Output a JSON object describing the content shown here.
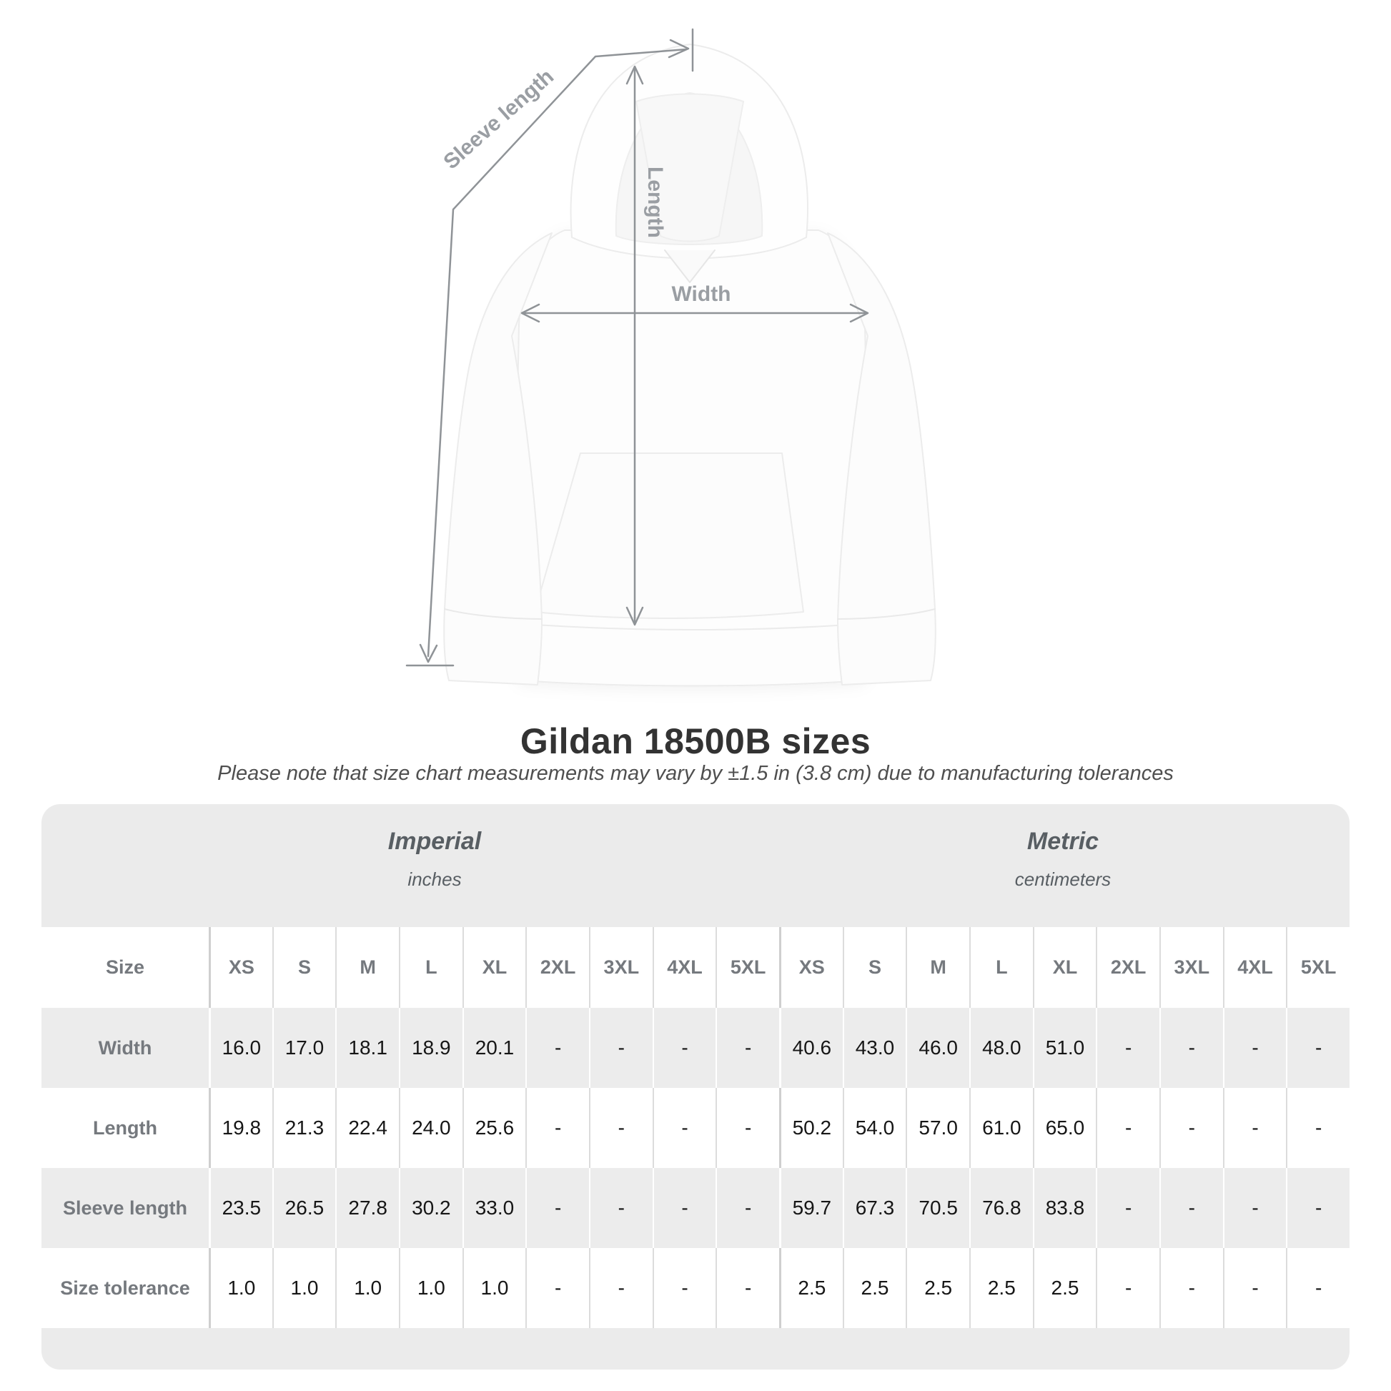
{
  "diagram": {
    "sleeve_length_label": "Sleeve length",
    "length_label": "Length",
    "width_label": "Width"
  },
  "title": "Gildan 18500B sizes",
  "subtitle": "Please note that size chart measurements may vary by ±1.5 in (3.8 cm) due to manufacturing tolerances",
  "table": {
    "size_header": "Size",
    "unit_groups": [
      {
        "name": "Imperial",
        "unit": "inches"
      },
      {
        "name": "Metric",
        "unit": "centimeters"
      }
    ],
    "sizes": [
      "XS",
      "S",
      "M",
      "L",
      "XL",
      "2XL",
      "3XL",
      "4XL",
      "5XL"
    ],
    "rows": [
      {
        "label": "Width",
        "imperial": [
          "16.0",
          "17.0",
          "18.1",
          "18.9",
          "20.1",
          "-",
          "-",
          "-",
          "-"
        ],
        "metric": [
          "40.6",
          "43.0",
          "46.0",
          "48.0",
          "51.0",
          "-",
          "-",
          "-",
          "-"
        ]
      },
      {
        "label": "Length",
        "imperial": [
          "19.8",
          "21.3",
          "22.4",
          "24.0",
          "25.6",
          "-",
          "-",
          "-",
          "-"
        ],
        "metric": [
          "50.2",
          "54.0",
          "57.0",
          "61.0",
          "65.0",
          "-",
          "-",
          "-",
          "-"
        ]
      },
      {
        "label": "Sleeve length",
        "imperial": [
          "23.5",
          "26.5",
          "27.8",
          "30.2",
          "33.0",
          "-",
          "-",
          "-",
          "-"
        ],
        "metric": [
          "59.7",
          "67.3",
          "70.5",
          "76.8",
          "83.8",
          "-",
          "-",
          "-",
          "-"
        ]
      },
      {
        "label": "Size tolerance",
        "imperial": [
          "1.0",
          "1.0",
          "1.0",
          "1.0",
          "1.0",
          "-",
          "-",
          "-",
          "-"
        ],
        "metric": [
          "2.5",
          "2.5",
          "2.5",
          "2.5",
          "2.5",
          "-",
          "-",
          "-",
          "-"
        ]
      }
    ]
  },
  "colors": {
    "annotation_line": "#8f9397",
    "annotation_text": "#9a9ea3",
    "band_bg": "#ebebeb",
    "row_alt_bg": "#ececec",
    "header_text": "#75797e",
    "value_text": "#161616"
  }
}
